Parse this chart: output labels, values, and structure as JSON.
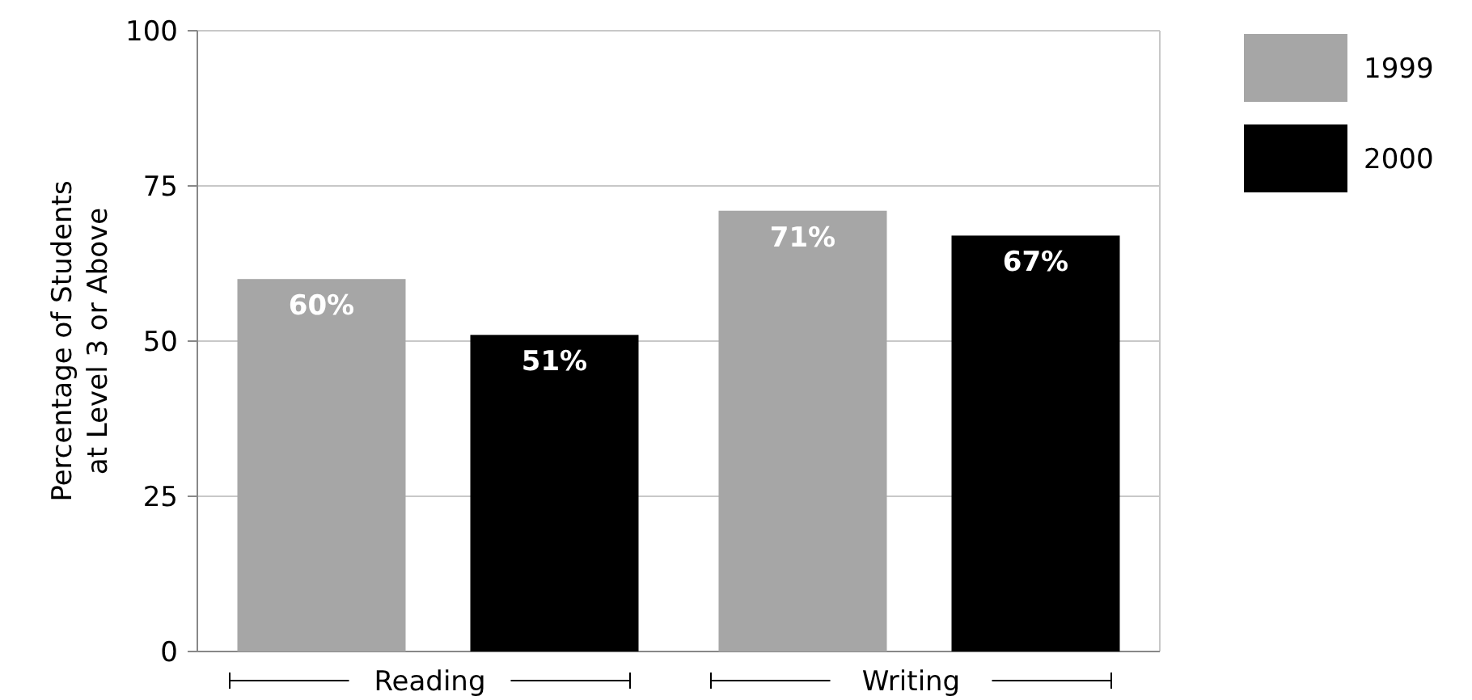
{
  "chart_data": {
    "type": "bar",
    "ylabel": "Percentage of Students\nat Level 3 or Above",
    "categories": [
      "Reading",
      "Writing"
    ],
    "series": [
      {
        "name": "1999",
        "color": "#a6a6a6",
        "values": [
          60,
          71
        ],
        "value_labels": [
          "60%",
          "71%"
        ]
      },
      {
        "name": "2000",
        "color": "#000000",
        "values": [
          51,
          67
        ],
        "value_labels": [
          "51%",
          "67%"
        ]
      }
    ],
    "ylim": [
      0,
      100
    ],
    "yticks": [
      0,
      25,
      50,
      75,
      100
    ],
    "grid": "y",
    "legend": "top right"
  }
}
